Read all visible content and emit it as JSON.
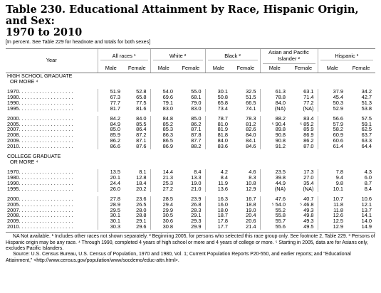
{
  "title": "Table 230. Educational Attainment by Race, Hispanic Origin, and Sex:\n1970 to 2010",
  "subtitle": "[In percent. See Table 229 for headnote and totals for both sexes]",
  "header": {
    "year": "Year",
    "groups": [
      "All races ¹",
      "White ²",
      "Black ²",
      "Asian and Pacific Islander ²",
      "Hispanic ³"
    ],
    "male": "Male",
    "female": "Female"
  },
  "sections": [
    {
      "label_lines": [
        "HIGH SCHOOL GRADUATE",
        "OR MORE ⁴"
      ],
      "blocks": [
        [
          {
            "year": "1970. . . . . . . . . . . . . . . . . . .",
            "v": [
              "51.9",
              "52.8",
              "54.0",
              "55.0",
              "30.1",
              "32.5",
              "61.3",
              "63.1",
              "37.9",
              "34.2"
            ]
          },
          {
            "year": "1980. . . . . . . . . . . . . . . . . . .",
            "v": [
              "67.3",
              "65.8",
              "69.6",
              "68.1",
              "50.8",
              "51.5",
              "78.8",
              "71.4",
              "45.4",
              "42.7"
            ]
          },
          {
            "year": "1990. . . . . . . . . . . . . . . . . . .",
            "v": [
              "77.7",
              "77.5",
              "79.1",
              "79.0",
              "65.8",
              "66.5",
              "84.0",
              "77.2",
              "50.3",
              "51.3"
            ]
          },
          {
            "year": "1995. . . . . . . . . . . . . . . . . . .",
            "v": [
              "81.7",
              "81.6",
              "83.0",
              "83.0",
              "73.4",
              "74.1",
              "(NA)",
              "(NA)",
              "52.9",
              "53.8"
            ]
          }
        ],
        [
          {
            "year": "2000. . . . . . . . . . . . . . . . . . .",
            "v": [
              "84.2",
              "84.0",
              "84.8",
              "85.0",
              "78.7",
              "78.3",
              "88.2",
              "83.4",
              "56.6",
              "57.5"
            ]
          },
          {
            "year": "2005. . . . . . . . . . . . . . . . . . .",
            "v": [
              "84.9",
              "85.5",
              "85.2",
              "86.2",
              "81.0",
              "81.2",
              "⁵ 90.4",
              "⁵ 85.2",
              "57.9",
              "59.1"
            ]
          },
          {
            "year": "2007. . . . . . . . . . . . . . . . . . .",
            "v": [
              "85.0",
              "86.4",
              "85.3",
              "87.1",
              "81.9",
              "82.6",
              "89.8",
              "85.9",
              "58.2",
              "62.5"
            ]
          },
          {
            "year": "2008. . . . . . . . . . . . . . . . . . .",
            "v": [
              "85.9",
              "87.2",
              "86.3",
              "87.8",
              "81.8",
              "84.0",
              "90.8",
              "86.9",
              "60.9",
              "63.7"
            ]
          },
          {
            "year": "2009. . . . . . . . . . . . . . . . . . .",
            "v": [
              "86.2",
              "87.1",
              "86.5",
              "87.7",
              "84.0",
              "84.1",
              "90.8",
              "86.2",
              "60.6",
              "63.3"
            ]
          },
          {
            "year": "2010. . . . . . . . . . . . . . . . . . .",
            "v": [
              "86.6",
              "87.6",
              "86.9",
              "88.2",
              "83.6",
              "84.6",
              "91.2",
              "87.0",
              "61.4",
              "64.4"
            ]
          }
        ]
      ]
    },
    {
      "label_lines": [
        "COLLEGE GRADUATE",
        "OR MORE ⁴"
      ],
      "blocks": [
        [
          {
            "year": "1970. . . . . . . . . . . . . . . . . . .",
            "v": [
              "13.5",
              "8.1",
              "14.4",
              "8.4",
              "4.2",
              "4.6",
              "23.5",
              "17.3",
              "7.8",
              "4.3"
            ]
          },
          {
            "year": "1980. . . . . . . . . . . . . . . . . . .",
            "v": [
              "20.1",
              "12.8",
              "21.3",
              "13.3",
              "8.4",
              "8.3",
              "39.8",
              "27.0",
              "9.4",
              "6.0"
            ]
          },
          {
            "year": "1990. . . . . . . . . . . . . . . . . . .",
            "v": [
              "24.4",
              "18.4",
              "25.3",
              "19.0",
              "11.9",
              "10.8",
              "44.9",
              "35.4",
              "9.8",
              "8.7"
            ]
          },
          {
            "year": "1995. . . . . . . . . . . . . . . . . . .",
            "v": [
              "26.0",
              "20.2",
              "27.2",
              "21.0",
              "13.6",
              "12.9",
              "(NA)",
              "(NA)",
              "10.1",
              "8.4"
            ]
          }
        ],
        [
          {
            "year": "2000. . . . . . . . . . . . . . . . . . .",
            "v": [
              "27.8",
              "23.6",
              "28.5",
              "23.9",
              "16.3",
              "16.7",
              "47.6",
              "40.7",
              "10.7",
              "10.6"
            ]
          },
          {
            "year": "2005. . . . . . . . . . . . . . . . . . .",
            "v": [
              "28.9",
              "26.5",
              "29.4",
              "26.8",
              "16.0",
              "18.8",
              "⁵ 54.0",
              "⁵ 46.8",
              "11.8",
              "12.1"
            ]
          },
          {
            "year": "2007. . . . . . . . . . . . . . . . . . .",
            "v": [
              "29.5",
              "28.0",
              "29.9",
              "28.3",
              "18.0",
              "19.0",
              "55.2",
              "49.3",
              "11.8",
              "13.7"
            ]
          },
          {
            "year": "2008. . . . . . . . . . . . . . . . . . .",
            "v": [
              "30.1",
              "28.8",
              "30.5",
              "29.1",
              "18.7",
              "20.4",
              "55.8",
              "49.8",
              "12.6",
              "14.1"
            ]
          },
          {
            "year": "2009. . . . . . . . . . . . . . . . . . .",
            "v": [
              "30.1",
              "29.1",
              "30.6",
              "29.3",
              "17.8",
              "20.6",
              "55.7",
              "49.3",
              "12.5",
              "14.0"
            ]
          },
          {
            "year": "2010. . . . . . . . . . . . . . . . . . .",
            "v": [
              "30.3",
              "29.6",
              "30.8",
              "29.9",
              "17.7",
              "21.4",
              "55.6",
              "49.5",
              "12.9",
              "14.9"
            ]
          }
        ]
      ]
    }
  ],
  "notes": [
    "NA Not available. ¹ Includes other races not shown separately. ² Beginning 2005, for persons who selected this race group only. See footnote 2, Table 229. ³ Persons of Hispanic origin may be any race. ⁴ Through 1990, completed 4 years of high school or more and 4 years of college or more. ⁵ Starting in 2005, data are for Asians only, excludes Pacific Islanders.",
    "Source: U.S. Census Bureau, U.S. Census of Population, 1970 and 1980, Vol. 1; Current Population Reports P20-550, and earlier reports; and \"Educational Attainment,\" <http://www.census.gov/population/www/socdemo/educ-attn.html>."
  ]
}
